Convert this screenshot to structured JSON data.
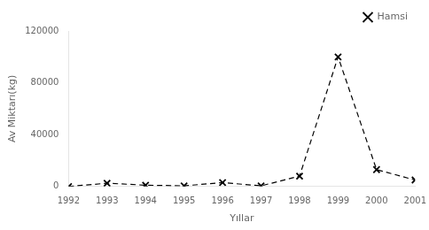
{
  "chart_data": {
    "type": "line",
    "x": [
      1992,
      1993,
      1994,
      1995,
      1996,
      1997,
      1998,
      1999,
      2000,
      2001
    ],
    "series": [
      {
        "name": "Hamsi",
        "color": "black",
        "marker": "x",
        "line_style": "dashed",
        "values": [
          0,
          2500,
          1000,
          500,
          3000,
          500,
          8000,
          100000,
          13000,
          5000
        ]
      }
    ],
    "xlabel": "Yıllar",
    "ylabel": "Av Miktarı(kg)",
    "xlim": [
      1992,
      2001
    ],
    "xticks": [
      1992,
      1993,
      1994,
      1995,
      1996,
      1997,
      1998,
      1999,
      2000,
      2001
    ],
    "ylim": [
      0,
      120000
    ],
    "yticks": [
      0,
      40000,
      80000,
      120000
    ],
    "grid": false,
    "legend": "upper right"
  }
}
